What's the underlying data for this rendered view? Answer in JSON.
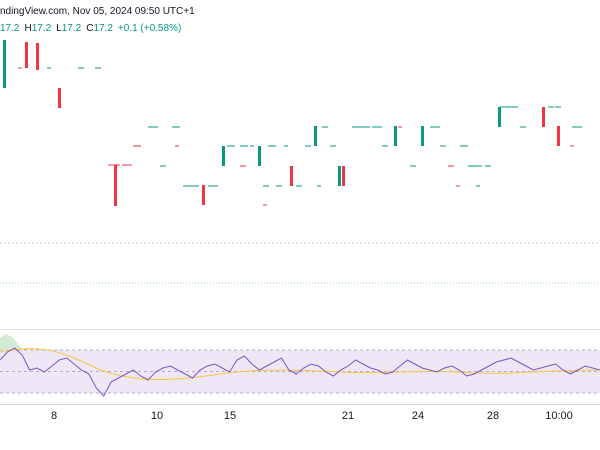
{
  "header": {
    "source": "ndingView.com, Nov 05, 2024 09:50 UTC+1"
  },
  "ohlc": {
    "open": "17.2",
    "high_label": "H",
    "high": "17.2",
    "low_label": "L",
    "low": "17.2",
    "close_label": "C",
    "close": "17.2",
    "change": "+0.1 (+0.58%)"
  },
  "colors": {
    "up": "#089981",
    "down": "#f23645",
    "rsi_line": "#7e57c2",
    "rsi_ma": "#f5c94a",
    "rsi_band": "#ede7f6"
  },
  "time_axis": {
    "labels": [
      "8",
      "10",
      "15",
      "21",
      "24",
      "28",
      "10:00"
    ]
  }
}
